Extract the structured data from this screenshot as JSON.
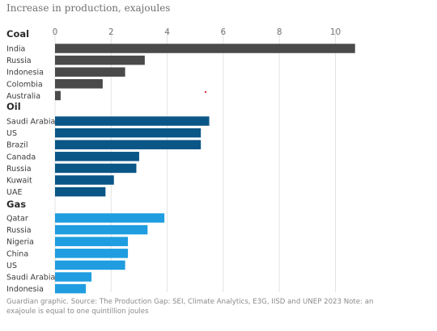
{
  "chart_data": {
    "type": "bar",
    "orientation": "horizontal",
    "title": "Increase in production, exajoules",
    "xlim": [
      0,
      11
    ],
    "xticks": [
      0,
      2,
      4,
      6,
      8,
      10
    ],
    "grid": true,
    "groups": [
      {
        "name": "Coal",
        "color": "#4a4a4a",
        "categories": [
          "India",
          "Russia",
          "Indonesia",
          "Colombia",
          "Australia"
        ],
        "values": [
          10.7,
          3.2,
          2.5,
          1.7,
          0.2
        ]
      },
      {
        "name": "Oil",
        "color": "#0a5687",
        "categories": [
          "Saudi Arabia",
          "US",
          "Brazil",
          "Canada",
          "Russia",
          "Kuwait",
          "UAE"
        ],
        "values": [
          5.5,
          5.2,
          5.2,
          3.0,
          2.9,
          2.1,
          1.8
        ]
      },
      {
        "name": "Gas",
        "color": "#1f9de0",
        "categories": [
          "Qatar",
          "Russia",
          "Nigeria",
          "China",
          "US",
          "Saudi Arabia",
          "Indonesia"
        ],
        "values": [
          3.9,
          3.3,
          2.6,
          2.6,
          2.5,
          1.3,
          1.1
        ]
      }
    ]
  },
  "footer": "Guardian graphic. Source: The Production Gap: SEI, Climate Analytics, E3G, IISD and UNEP 2023 Note: an exajoule is equal to one quintillion joules"
}
